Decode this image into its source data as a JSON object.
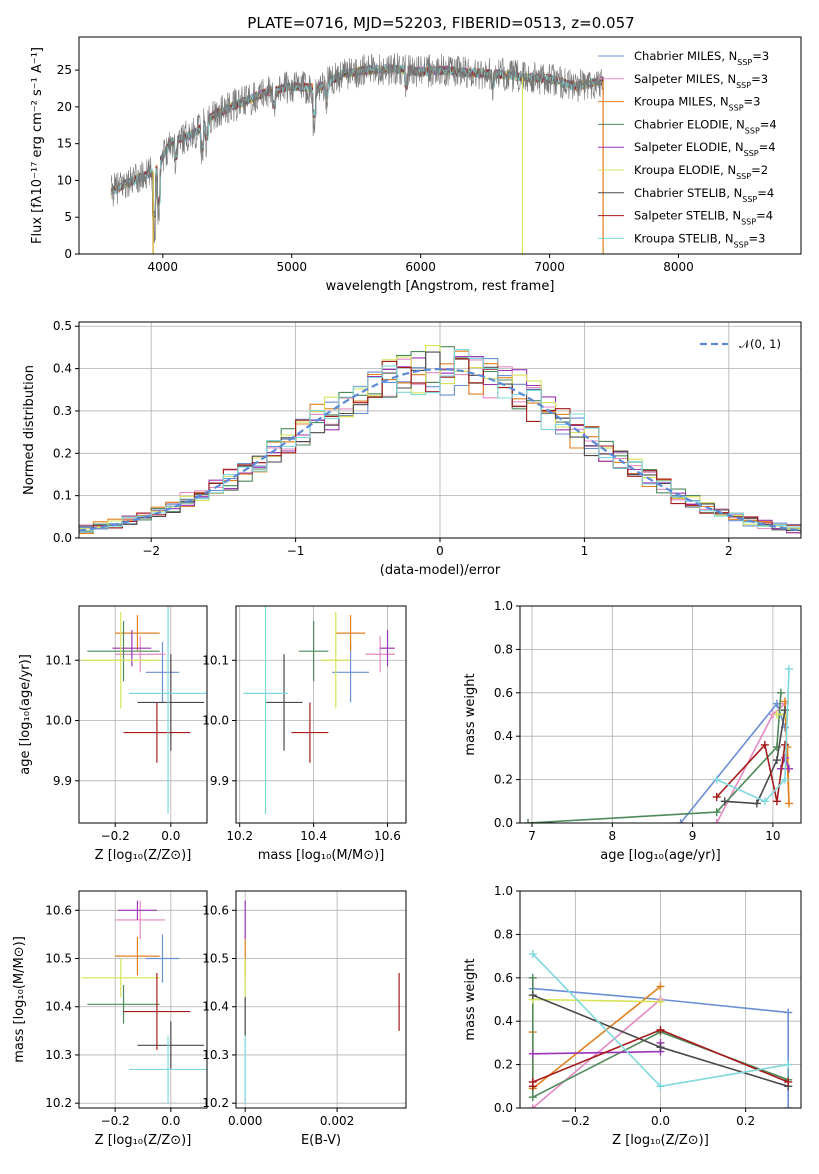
{
  "title": "PLATE=0716, MJD=52203, FIBERID=0513, z=0.057",
  "colors": {
    "Chabrier MILES": "#6a8fd4",
    "Salpeter MILES": "#e68ac3",
    "Kroupa MILES": "#e0801e",
    "Chabrier ELODIE": "#4f8a5b",
    "Salpeter ELODIE": "#9b35b5",
    "Kroupa ELODIE": "#d6e35a",
    "Chabrier STELIB": "#4a4a4a",
    "Salpeter STELIB": "#a51b1b",
    "Kroupa STELIB": "#7fd8dc"
  },
  "chart_data": [
    {
      "id": "spectrum",
      "type": "line",
      "title": "PLATE=0716, MJD=52203, FIBERID=0513, z=0.057",
      "xlabel": "wavelength [Angstrom, rest frame]",
      "ylabel": "Flux [fλ10⁻¹⁷ erg cm⁻² s⁻¹ A⁻¹]",
      "xlim": [
        3350,
        8950
      ],
      "ylim": [
        0,
        29.5
      ],
      "xticks": [
        4000,
        5000,
        6000,
        7000,
        8000
      ],
      "yticks": [
        0,
        5,
        10,
        15,
        20,
        25
      ],
      "continuum": [
        [
          3600,
          8.5
        ],
        [
          3700,
          9.5
        ],
        [
          3850,
          10.5
        ],
        [
          3950,
          11.5
        ],
        [
          4050,
          15
        ],
        [
          4250,
          16.5
        ],
        [
          4400,
          19
        ],
        [
          4600,
          20.5
        ],
        [
          4800,
          22
        ],
        [
          5000,
          22.8
        ],
        [
          5200,
          22.5
        ],
        [
          5400,
          24.5
        ],
        [
          5600,
          25
        ],
        [
          5800,
          25.2
        ],
        [
          6000,
          24.8
        ],
        [
          6200,
          25
        ],
        [
          6400,
          24.6
        ],
        [
          6600,
          24.5
        ],
        [
          6800,
          24
        ],
        [
          7000,
          23.8
        ],
        [
          7200,
          22.8
        ],
        [
          7400,
          23.5
        ]
      ],
      "legend": [
        {
          "name": "Chabrier MILES",
          "nssp": "3"
        },
        {
          "name": "Salpeter MILES",
          "nssp": "3"
        },
        {
          "name": "Kroupa MILES",
          "nssp": "3"
        },
        {
          "name": "Chabrier ELODIE",
          "nssp": "4"
        },
        {
          "name": "Salpeter ELODIE",
          "nssp": "4"
        },
        {
          "name": "Kroupa ELODIE",
          "nssp": "2"
        },
        {
          "name": "Chabrier STELIB",
          "nssp": "4"
        },
        {
          "name": "Salpeter STELIB",
          "nssp": "4"
        },
        {
          "name": "Kroupa STELIB",
          "nssp": "3"
        }
      ]
    },
    {
      "id": "residuals",
      "type": "line",
      "xlabel": "(data-model)/error",
      "ylabel": "Normed distribution",
      "xlim": [
        -2.5,
        2.5
      ],
      "ylim": [
        0,
        0.51
      ],
      "xticks": [
        -2,
        -1,
        0,
        1,
        2
      ],
      "yticks": [
        0.0,
        0.1,
        0.2,
        0.3,
        0.4,
        0.5
      ],
      "legend": "𝒩(0, 1)",
      "gaussian_sigma": 1.0
    },
    {
      "id": "age_vs_Z",
      "type": "scatter",
      "xlabel": "Z [log₁₀(Z/Z⊙)]",
      "ylabel": "age  [log₁₀(age/yr)]",
      "xlim": [
        -0.33,
        0.13
      ],
      "ylim": [
        9.83,
        10.19
      ],
      "xticks": [
        -0.2,
        0.0
      ],
      "yticks": [
        9.9,
        10.0,
        10.1
      ],
      "points": [
        {
          "s": "Chabrier MILES",
          "x": -0.03,
          "xe": 0.06,
          "y": 10.08,
          "ye": 0.05
        },
        {
          "s": "Salpeter MILES",
          "x": -0.11,
          "xe": 0.09,
          "y": 10.11,
          "ye": 0.03
        },
        {
          "s": "Kroupa MILES",
          "x": -0.12,
          "xe": 0.08,
          "y": 10.145,
          "ye": 0.03
        },
        {
          "s": "Chabrier ELODIE",
          "x": -0.17,
          "xe": 0.13,
          "y": 10.115,
          "ye": 0.05
        },
        {
          "s": "Salpeter ELODIE",
          "x": -0.14,
          "xe": 0.07,
          "y": 10.12,
          "ye": 0.03
        },
        {
          "s": "Kroupa ELODIE",
          "x": -0.18,
          "xe": 0.14,
          "y": 10.1,
          "ye": 0.08
        },
        {
          "s": "Chabrier STELIB",
          "x": 0.0,
          "xe": 0.12,
          "y": 10.03,
          "ye": 0.08
        },
        {
          "s": "Salpeter STELIB",
          "x": -0.05,
          "xe": 0.12,
          "y": 9.98,
          "ye": 0.05
        },
        {
          "s": "Kroupa STELIB",
          "x": -0.01,
          "xe": 0.14,
          "y": 10.045,
          "ye": 0.2
        }
      ]
    },
    {
      "id": "age_vs_mass",
      "type": "scatter",
      "xlabel": "mass [log₁₀(M/M⊙)]",
      "ylabel": "",
      "xlim": [
        10.19,
        10.65
      ],
      "ylim": [
        9.83,
        10.19
      ],
      "xticks": [
        10.2,
        10.4,
        10.6
      ],
      "yticks": [
        9.9,
        10.0,
        10.1
      ],
      "points": [
        {
          "s": "Chabrier MILES",
          "x": 10.5,
          "xe": 0.05,
          "y": 10.08,
          "ye": 0.05
        },
        {
          "s": "Salpeter MILES",
          "x": 10.58,
          "xe": 0.04,
          "y": 10.11,
          "ye": 0.03
        },
        {
          "s": "Kroupa MILES",
          "x": 10.5,
          "xe": 0.04,
          "y": 10.145,
          "ye": 0.03
        },
        {
          "s": "Chabrier ELODIE",
          "x": 10.4,
          "xe": 0.04,
          "y": 10.115,
          "ye": 0.05
        },
        {
          "s": "Salpeter ELODIE",
          "x": 10.6,
          "xe": 0.02,
          "y": 10.12,
          "ye": 0.03
        },
        {
          "s": "Kroupa ELODIE",
          "x": 10.46,
          "xe": 0.04,
          "y": 10.1,
          "ye": 0.08
        },
        {
          "s": "Chabrier STELIB",
          "x": 10.32,
          "xe": 0.05,
          "y": 10.03,
          "ye": 0.08
        },
        {
          "s": "Salpeter STELIB",
          "x": 10.39,
          "xe": 0.05,
          "y": 9.98,
          "ye": 0.05
        },
        {
          "s": "Kroupa STELIB",
          "x": 10.27,
          "xe": 0.06,
          "y": 10.045,
          "ye": 0.2
        }
      ]
    },
    {
      "id": "weight_vs_age",
      "type": "line",
      "xlabel": "age  [log₁₀(age/yr)]",
      "ylabel": "mass weight",
      "xlim": [
        6.85,
        10.35
      ],
      "ylim": [
        0,
        1
      ],
      "xticks": [
        7,
        8,
        9,
        10
      ],
      "yticks": [
        0.0,
        0.2,
        0.4,
        0.6,
        0.8,
        1.0
      ],
      "series": [
        {
          "s": "Chabrier MILES",
          "x": [
            8.85,
            10.05,
            10.15
          ],
          "y": [
            0.0,
            0.55,
            0.44
          ]
        },
        {
          "s": "Salpeter MILES",
          "x": [
            9.3,
            10.0,
            10.15
          ],
          "y": [
            0.0,
            0.5,
            0.55
          ]
        },
        {
          "s": "Kroupa MILES",
          "x": [
            10.15,
            10.2,
            10.18
          ],
          "y": [
            0.56,
            0.09,
            0.35
          ]
        },
        {
          "s": "Chabrier ELODIE",
          "x": [
            6.95,
            9.3,
            10.05,
            10.1
          ],
          "y": [
            0.0,
            0.05,
            0.35,
            0.6
          ]
        },
        {
          "s": "Salpeter ELODIE",
          "x": [
            10.1,
            10.15,
            10.2
          ],
          "y": [
            0.25,
            0.3,
            0.25
          ]
        },
        {
          "s": "Kroupa ELODIE",
          "x": [
            10.05,
            10.15
          ],
          "y": [
            0.5,
            0.5
          ]
        },
        {
          "s": "Chabrier STELIB",
          "x": [
            9.4,
            9.8,
            10.05,
            10.15
          ],
          "y": [
            0.1,
            0.09,
            0.29,
            0.52
          ]
        },
        {
          "s": "Salpeter STELIB",
          "x": [
            9.3,
            9.9,
            10.05,
            10.15
          ],
          "y": [
            0.12,
            0.36,
            0.1,
            0.36
          ]
        },
        {
          "s": "Kroupa STELIB",
          "x": [
            9.3,
            9.9,
            10.15,
            10.2
          ],
          "y": [
            0.2,
            0.1,
            0.2,
            0.71
          ]
        }
      ]
    },
    {
      "id": "mass_vs_Z",
      "type": "scatter",
      "xlabel": "Z [log₁₀(Z/Z⊙)]",
      "ylabel": "mass [log₁₀(M/M⊙)]",
      "xlim": [
        -0.33,
        0.13
      ],
      "ylim": [
        10.19,
        10.64
      ],
      "xticks": [
        -0.2,
        0.0
      ],
      "yticks": [
        10.2,
        10.3,
        10.4,
        10.5,
        10.6
      ],
      "points": [
        {
          "s": "Chabrier MILES",
          "x": -0.03,
          "xe": 0.06,
          "y": 10.5,
          "ye": 0.05
        },
        {
          "s": "Salpeter MILES",
          "x": -0.11,
          "xe": 0.09,
          "y": 10.58,
          "ye": 0.04
        },
        {
          "s": "Kroupa MILES",
          "x": -0.12,
          "xe": 0.08,
          "y": 10.505,
          "ye": 0.04
        },
        {
          "s": "Chabrier ELODIE",
          "x": -0.17,
          "xe": 0.13,
          "y": 10.405,
          "ye": 0.04
        },
        {
          "s": "Salpeter ELODIE",
          "x": -0.12,
          "xe": 0.07,
          "y": 10.6,
          "ye": 0.02
        },
        {
          "s": "Kroupa ELODIE",
          "x": -0.18,
          "xe": 0.14,
          "y": 10.46,
          "ye": 0.04
        },
        {
          "s": "Chabrier STELIB",
          "x": 0.0,
          "xe": 0.12,
          "y": 10.32,
          "ye": 0.05
        },
        {
          "s": "Salpeter STELIB",
          "x": -0.05,
          "xe": 0.12,
          "y": 10.39,
          "ye": 0.08
        },
        {
          "s": "Kroupa STELIB",
          "x": -0.01,
          "xe": 0.14,
          "y": 10.27,
          "ye": 0.07
        }
      ]
    },
    {
      "id": "mass_vs_ebv",
      "type": "scatter",
      "xlabel": "E(B-V)",
      "ylabel": "",
      "xlim": [
        -0.0002,
        0.0035
      ],
      "ylim": [
        10.19,
        10.64
      ],
      "xticks": [
        0.0,
        0.002
      ],
      "xtick_labels": [
        "0.000",
        "0.002"
      ],
      "yticks": [
        10.2,
        10.3,
        10.4,
        10.5,
        10.6
      ],
      "points": [
        {
          "s": "Salpeter ELODIE",
          "x": 0.0,
          "y": 10.58,
          "ye": 0.04
        },
        {
          "s": "Kroupa MILES",
          "x": 0.0,
          "y": 10.5,
          "ye": 0.04
        },
        {
          "s": "Kroupa ELODIE",
          "x": 0.0,
          "y": 10.46,
          "ye": 0.04
        },
        {
          "s": "Chabrier STELIB",
          "x": 0.0,
          "y": 10.38,
          "ye": 0.04
        },
        {
          "s": "Kroupa STELIB",
          "x": 0.0,
          "y": 10.27,
          "ye": 0.07
        },
        {
          "s": "Salpeter STELIB",
          "x": 0.00335,
          "y": 10.41,
          "ye": 0.06
        }
      ]
    },
    {
      "id": "weight_vs_Z",
      "type": "line",
      "xlabel": "Z [log₁₀(Z/Z⊙)]",
      "ylabel": "mass weight",
      "xlim": [
        -0.33,
        0.33
      ],
      "ylim": [
        0,
        1
      ],
      "xticks": [
        -0.2,
        0.0,
        0.2
      ],
      "yticks": [
        0.0,
        0.2,
        0.4,
        0.6,
        0.8,
        1.0
      ],
      "series": [
        {
          "s": "Chabrier MILES",
          "x": [
            -0.3,
            0.0,
            0.3,
            0.3
          ],
          "y": [
            0.55,
            0.5,
            0.44,
            0.0
          ]
        },
        {
          "s": "Salpeter MILES",
          "x": [
            -0.3,
            0.0
          ],
          "y": [
            0.0,
            0.5
          ]
        },
        {
          "s": "Kroupa MILES",
          "x": [
            -0.3,
            -0.3,
            0.0
          ],
          "y": [
            0.35,
            0.09,
            0.56
          ]
        },
        {
          "s": "Chabrier ELODIE",
          "x": [
            -0.3,
            -0.3,
            0.0,
            0.3
          ],
          "y": [
            0.6,
            0.05,
            0.35,
            0.13
          ]
        },
        {
          "s": "Salpeter ELODIE",
          "x": [
            -0.3,
            0.0,
            0.0
          ],
          "y": [
            0.25,
            0.26,
            0.3
          ]
        },
        {
          "s": "Kroupa ELODIE",
          "x": [
            -0.3,
            0.0
          ],
          "y": [
            0.5,
            0.49
          ]
        },
        {
          "s": "Chabrier STELIB",
          "x": [
            -0.3,
            0.0,
            0.3
          ],
          "y": [
            0.52,
            0.28,
            0.1
          ]
        },
        {
          "s": "Salpeter STELIB",
          "x": [
            -0.3,
            -0.3,
            0.0,
            0.3
          ],
          "y": [
            0.1,
            0.12,
            0.36,
            0.12
          ]
        },
        {
          "s": "Kroupa STELIB",
          "x": [
            -0.3,
            0.0,
            0.3
          ],
          "y": [
            0.71,
            0.1,
            0.2
          ]
        }
      ]
    }
  ]
}
